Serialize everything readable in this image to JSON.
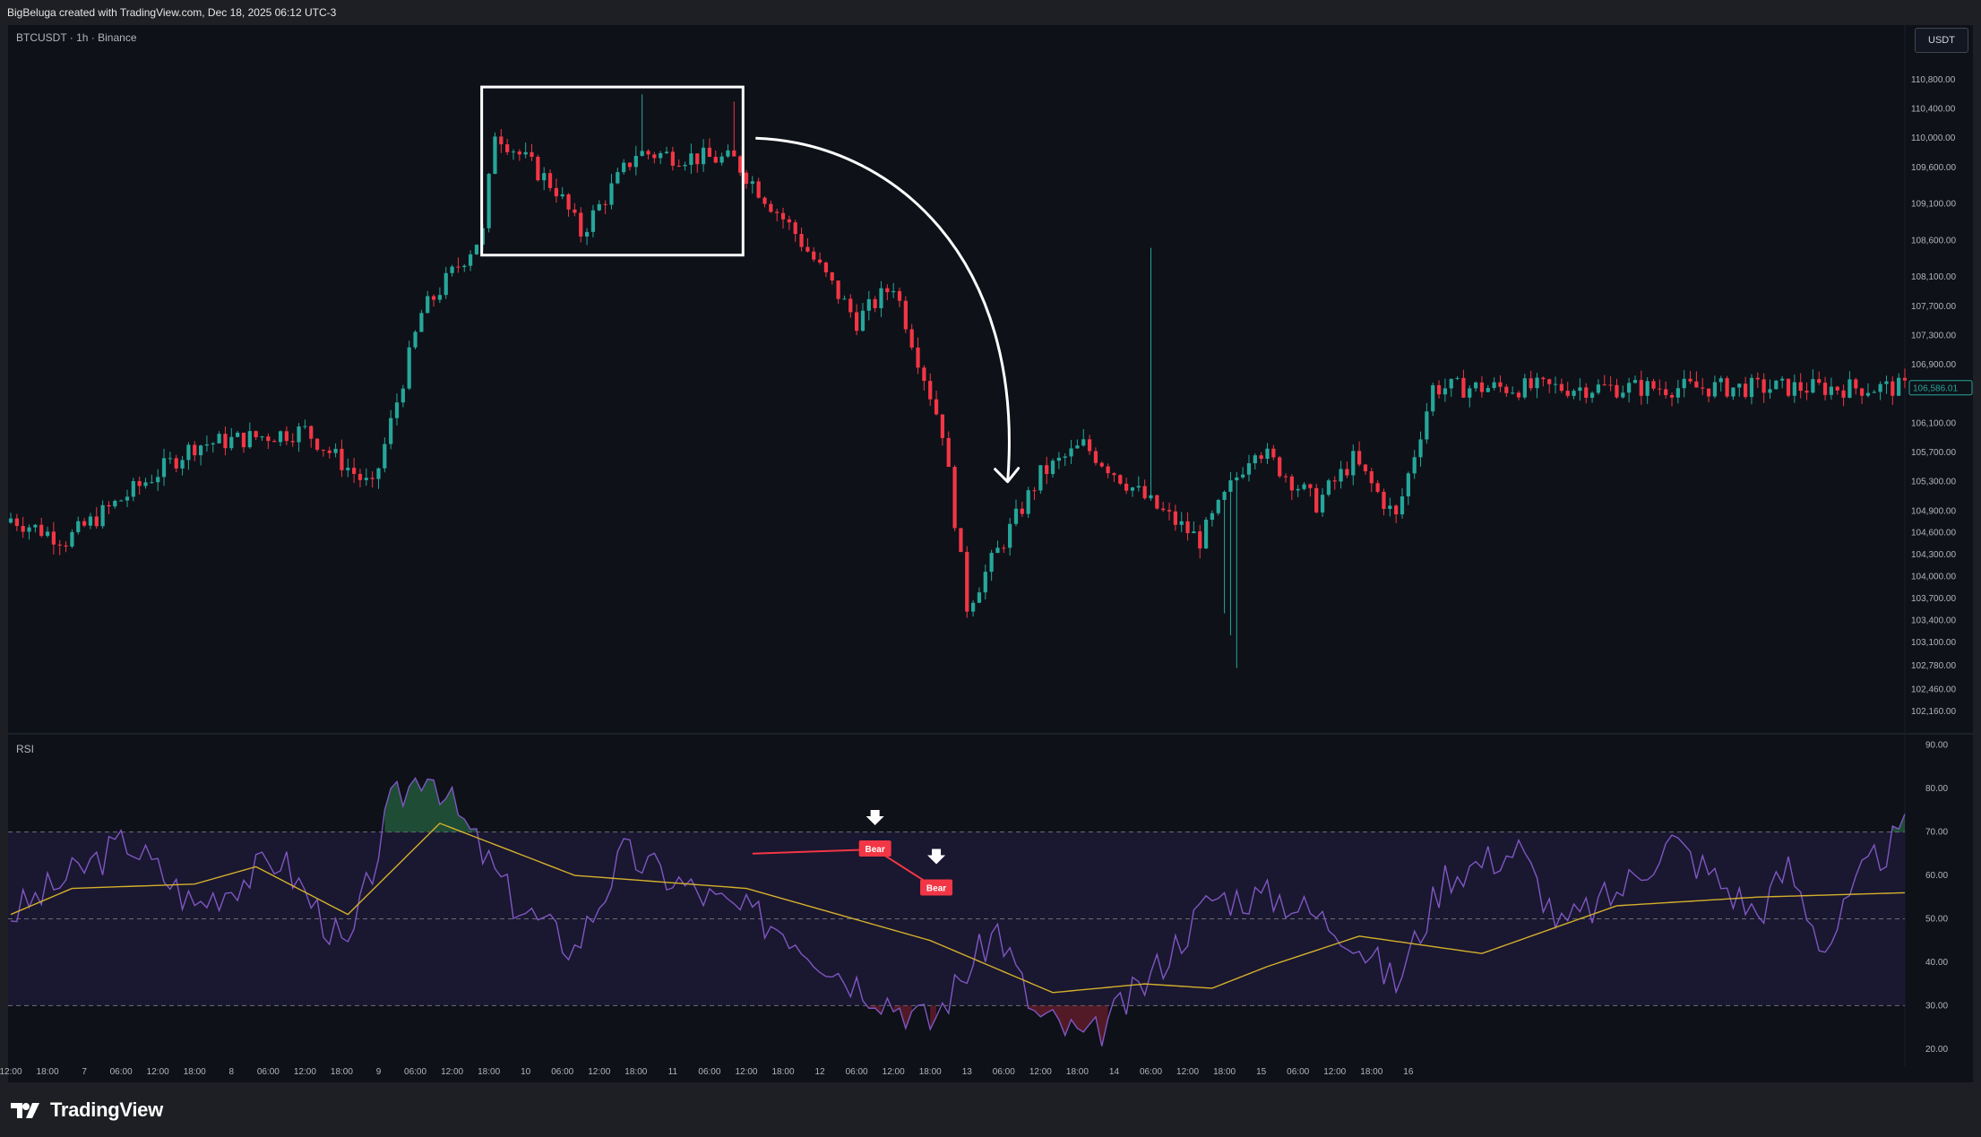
{
  "header": {
    "credit": "BigBeluga created with TradingView.com, Dec 18, 2025 06:12 UTC-3"
  },
  "symbol_line": "BTCUSDT · 1h · Binance",
  "currency": "USDT",
  "rsi_pane_title": "RSI",
  "brand": "TradingView",
  "colors": {
    "bull": "#26a69a",
    "bear": "#f23645",
    "rsi": "#7e57c2",
    "rsi_ma": "#d4b02c",
    "background": "#0e1118",
    "highlight_box": "#ffffff"
  },
  "chart_data": [
    {
      "type": "candlestick",
      "title": "BTCUSDT · 1h · Binance",
      "y_axis": {
        "range": [
          101900,
          111400
        ],
        "ticks": [
          102160,
          102460,
          102780,
          103100,
          103400,
          103700,
          104000,
          104300,
          104600,
          104900,
          105300,
          105700,
          106100,
          106900,
          107300,
          107700,
          108100,
          108600,
          109100,
          109600,
          110000,
          110400,
          110800
        ],
        "tick_labels": [
          "102,160.00",
          "102,460.00",
          "102,780.00",
          "103,100.00",
          "103,400.00",
          "103,700.00",
          "104,000.00",
          "104,300.00",
          "104,600.00",
          "104,900.00",
          "105,300.00",
          "105,700.00",
          "106,100.00",
          "106,900.00",
          "107,300.00",
          "107,700.00",
          "108,100.00",
          "108,600.00",
          "109,100.00",
          "109,600.00",
          "110,000.00",
          "110,400.00",
          "110,800.00"
        ]
      },
      "last_price": {
        "value": 106586.01,
        "label": "106,586.01"
      },
      "x_axis": {
        "tick_labels": [
          "12:00",
          "18:00",
          "7",
          "06:00",
          "12:00",
          "18:00",
          "8",
          "06:00",
          "12:00",
          "18:00",
          "9",
          "06:00",
          "12:00",
          "18:00",
          "10",
          "06:00",
          "12:00",
          "18:00",
          "11",
          "06:00",
          "12:00",
          "18:00",
          "12",
          "06:00",
          "12:00",
          "18:00",
          "13",
          "06:00",
          "12:00",
          "18:00",
          "14",
          "06:00",
          "12:00",
          "18:00",
          "15",
          "06:00",
          "12:00",
          "18:00",
          "16"
        ]
      },
      "key_points": [
        {
          "time": "Dec 6 12:00",
          "close": 104800
        },
        {
          "time": "Dec 6 21:00",
          "close": 104500
        },
        {
          "time": "Dec 7 18:00",
          "close": 105800
        },
        {
          "time": "Dec 8 12:00",
          "close": 106000
        },
        {
          "time": "Dec 8 23:00",
          "close": 105200
        },
        {
          "time": "Dec 9 07:00",
          "close": 107600
        },
        {
          "time": "Dec 9 17:00",
          "close": 108700
        },
        {
          "time": "Dec 9 19:00",
          "close": 110100
        },
        {
          "time": "Dec 10 05:00",
          "close": 109300
        },
        {
          "time": "Dec 10 09:00",
          "close": 108700
        },
        {
          "time": "Dec 10 18:00",
          "close": 109800
        },
        {
          "time": "Dec 11 10:00",
          "close": 109700
        },
        {
          "time": "Dec 11 20:00",
          "close": 108700
        },
        {
          "time": "Dec 12 06:00",
          "close": 107500
        },
        {
          "time": "Dec 12 12:00",
          "close": 108000
        },
        {
          "time": "Dec 12 20:00",
          "close": 106000
        },
        {
          "time": "Dec 13 00:00",
          "close": 103600
        },
        {
          "time": "Dec 13 04:00",
          "close": 104200
        },
        {
          "time": "Dec 13 12:00",
          "close": 105400
        },
        {
          "time": "Dec 13 19:00",
          "close": 105800
        },
        {
          "time": "Dec 14 06:00",
          "close": 105000
        },
        {
          "time": "Dec 14 14:00",
          "close": 104500
        },
        {
          "time": "Dec 14 23:00",
          "close": 105800
        },
        {
          "time": "Dec 15 09:00",
          "close": 105000
        },
        {
          "time": "Dec 15 15:00",
          "close": 105600
        },
        {
          "time": "Dec 15 22:00",
          "close": 104800
        },
        {
          "time": "Dec 16 04:00",
          "close": 106586
        }
      ],
      "annotations": [
        "white box around Dec 9 18:00 – Dec 11 10:00 consolidation range (~108400–110500)",
        "curved white arrow pointing down from the range toward the Dec 13 low"
      ]
    },
    {
      "type": "line",
      "title": "RSI",
      "y_axis": {
        "range": [
          15,
          92
        ],
        "ticks": [
          20,
          30,
          40,
          50,
          60,
          70,
          80,
          90
        ],
        "tick_labels": [
          "20.00",
          "30.00",
          "40.00",
          "50.00",
          "60.00",
          "70.00",
          "80.00",
          "90.00"
        ]
      },
      "bands": {
        "upper": 70,
        "middle": 50,
        "lower": 30
      },
      "series": [
        {
          "name": "RSI",
          "key_points": [
            [
              0,
              51
            ],
            [
              10,
              60
            ],
            [
              19,
              68
            ],
            [
              30,
              53
            ],
            [
              44,
              64
            ],
            [
              55,
              42
            ],
            [
              62,
              76
            ],
            [
              68,
              85
            ],
            [
              82,
              54
            ],
            [
              92,
              43
            ],
            [
              100,
              65
            ],
            [
              115,
              54
            ],
            [
              126,
              48
            ],
            [
              136,
              37
            ],
            [
              150,
              26
            ],
            [
              161,
              48
            ],
            [
              167,
              28
            ],
            [
              176,
              22
            ],
            [
              185,
              35
            ],
            [
              196,
              55
            ],
            [
              207,
              55
            ],
            [
              218,
              47
            ],
            [
              226,
              35
            ],
            [
              234,
              60
            ],
            [
              246,
              66
            ],
            [
              253,
              48
            ],
            [
              262,
              56
            ],
            [
              271,
              68
            ],
            [
              285,
              51
            ],
            [
              290,
              62
            ],
            [
              296,
              43
            ],
            [
              303,
              62
            ],
            [
              309,
              70
            ]
          ]
        },
        {
          "name": "RSI MA",
          "key_points": [
            [
              0,
              51
            ],
            [
              10,
              57
            ],
            [
              30,
              58
            ],
            [
              40,
              62
            ],
            [
              55,
              51
            ],
            [
              70,
              72
            ],
            [
              92,
              60
            ],
            [
              120,
              57
            ],
            [
              150,
              45
            ],
            [
              170,
              33
            ],
            [
              185,
              35
            ],
            [
              196,
              34
            ],
            [
              205,
              39
            ],
            [
              220,
              46
            ],
            [
              240,
              42
            ],
            [
              262,
              53
            ],
            [
              285,
              55
            ],
            [
              309,
              56
            ]
          ]
        }
      ],
      "signals": [
        {
          "label": "Bear",
          "pivot_from": 121,
          "pivot_to": 141
        },
        {
          "label": "Bear",
          "pivot_from": 141,
          "pivot_to": 151
        }
      ]
    }
  ]
}
